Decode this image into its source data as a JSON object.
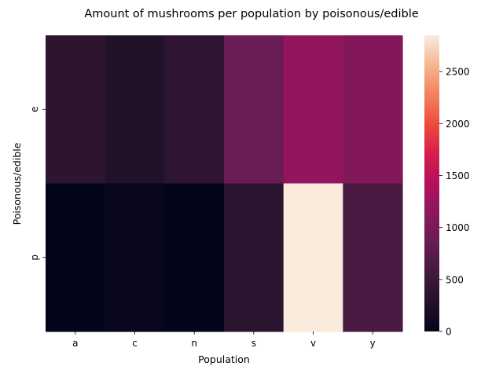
{
  "chart_data": {
    "type": "heatmap",
    "title": "Amount of mushrooms per population by poisonous/edible",
    "xlabel": "Population",
    "ylabel": "Poisonous/edible",
    "x_categories": [
      "a",
      "c",
      "n",
      "s",
      "v",
      "y"
    ],
    "y_categories": [
      "e",
      "p"
    ],
    "values": [
      [
        384,
        288,
        400,
        880,
        1192,
        1064
      ],
      [
        0,
        52,
        0,
        368,
        2848,
        624
      ]
    ],
    "colorbar": {
      "range": [
        0,
        2848
      ],
      "ticks": [
        0,
        500,
        1000,
        1500,
        2000,
        2500
      ],
      "colormap": "rocket"
    },
    "grid": false,
    "legend": "colorbar-right"
  }
}
